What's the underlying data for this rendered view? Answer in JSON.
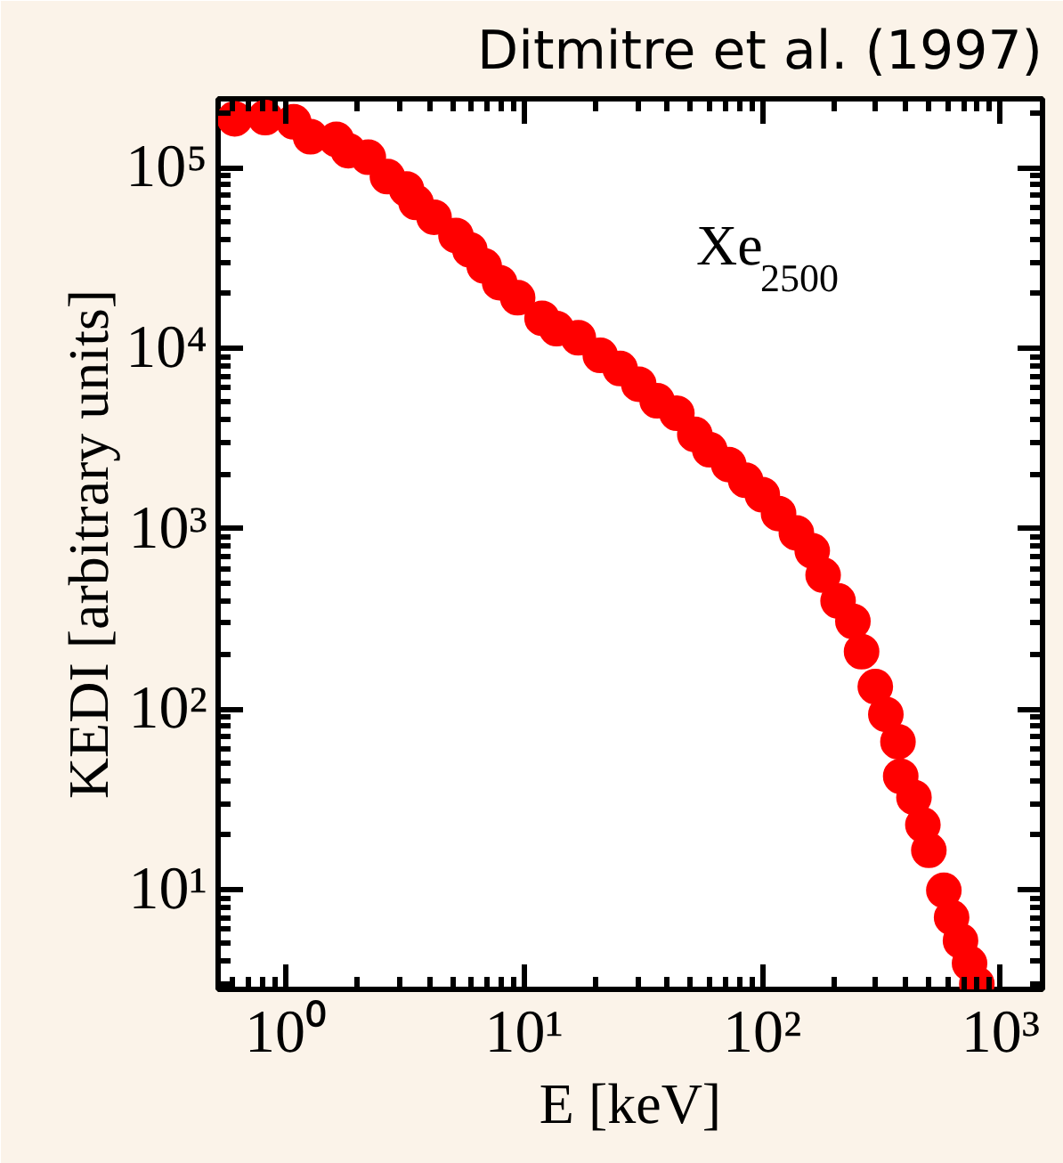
{
  "chart_data": {
    "type": "scatter",
    "title": "Ditmitre et al. (1997)",
    "xlabel": "E [keV]",
    "ylabel": "KEDI [arbitrary units]",
    "log": "xy",
    "grid": false,
    "marker": "circle",
    "xlim": [
      0.52,
      1500
    ],
    "ylim": [
      2.8,
      240000
    ],
    "xticks": [
      {
        "value": 1,
        "label": "10⁰"
      },
      {
        "value": 10,
        "label": "10¹"
      },
      {
        "value": 100,
        "label": "10²"
      },
      {
        "value": 1000,
        "label": "10³"
      }
    ],
    "yticks": [
      {
        "value": 10,
        "label": "10¹"
      },
      {
        "value": 100,
        "label": "10²"
      },
      {
        "value": 1000,
        "label": "10³"
      },
      {
        "value": 10000,
        "label": "10⁴"
      },
      {
        "value": 100000,
        "label": "10⁵"
      }
    ],
    "annotations": [
      "Xe$_{2500}$"
    ],
    "x": [
      0.61,
      0.82,
      1.08,
      1.27,
      1.63,
      1.83,
      2.22,
      2.67,
      3.21,
      3.52,
      4.19,
      5.18,
      5.92,
      6.8,
      7.9,
      9.4,
      11.9,
      13.7,
      16.9,
      20.9,
      25.3,
      30.3,
      36.2,
      43.8,
      52.1,
      60.2,
      72.3,
      85.1,
      100,
      117,
      139,
      162,
      180,
      208,
      240,
      261,
      298,
      330,
      371,
      381,
      433,
      472,
      500,
      578,
      623,
      679,
      741,
      795
    ],
    "series": [
      {
        "color": "#ff0000",
        "values": [
          186000,
          189000,
          179000,
          148000,
          143000,
          124000,
          114000,
          89000,
          76000,
          64000,
          53000,
          42000,
          35000,
          28500,
          23000,
          19000,
          14600,
          12800,
          11400,
          9100,
          7700,
          6300,
          5100,
          4350,
          3320,
          2730,
          2260,
          1850,
          1540,
          1210,
          946,
          752,
          552,
          397,
          306,
          208,
          133,
          93.5,
          65.9,
          42.4,
          32.4,
          22.8,
          16.5,
          9.9,
          7.0,
          5.2,
          3.9,
          3.0
        ]
      }
    ]
  }
}
